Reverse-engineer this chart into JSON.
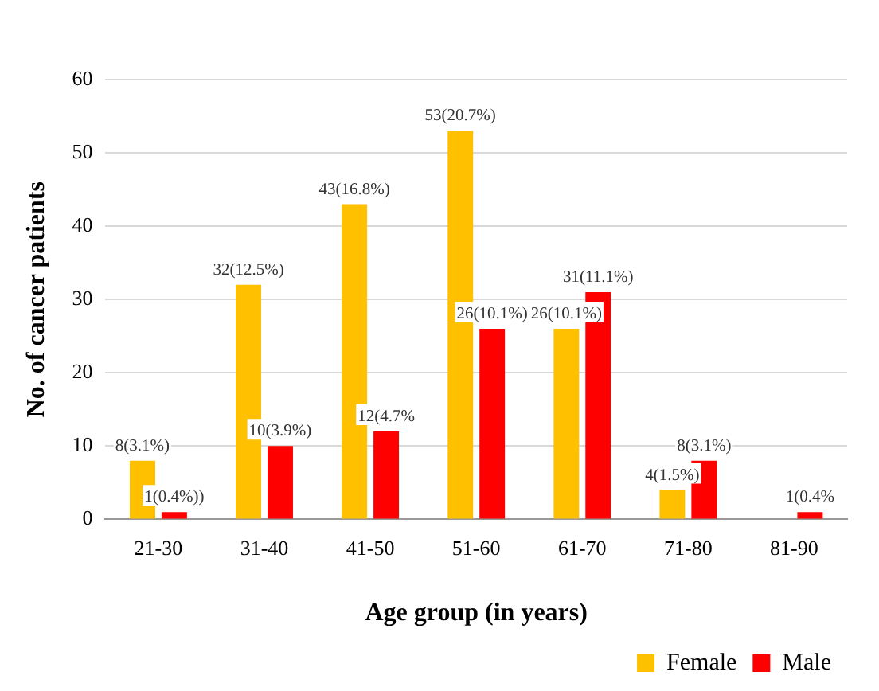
{
  "chart_data": {
    "type": "bar",
    "xlabel": "Age group (in years)",
    "ylabel": "No. of cancer patients",
    "categories": [
      "21-30",
      "31-40",
      "41-50",
      "51-60",
      "61-70",
      "71-80",
      "81-90"
    ],
    "series": [
      {
        "name": "Female",
        "color": "#ffc000",
        "values": [
          8,
          32,
          43,
          53,
          26,
          4,
          0
        ],
        "value_labels": [
          "8(3.1%)",
          "32(12.5%)",
          "43(16.8%)",
          "53(20.7%)",
          "26(10.1%)",
          "4(1.5%)",
          null
        ]
      },
      {
        "name": "Male",
        "color": "#ff0000",
        "values": [
          1,
          10,
          12,
          26,
          31,
          8,
          1
        ],
        "value_labels": [
          "1(0.4%))",
          "10(3.9%)",
          "12(4.7%",
          "26(10.1%)",
          "31(11.1%)",
          "8(3.1%)",
          "1(0.4%"
        ]
      }
    ],
    "ylim": [
      0,
      60
    ],
    "yticks": [
      0,
      10,
      20,
      30,
      40,
      50,
      60
    ],
    "grid": "y",
    "legend": "bottom right"
  }
}
